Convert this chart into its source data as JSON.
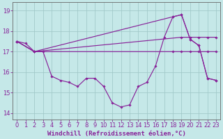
{
  "background_color": "#c5e8e8",
  "grid_color": "#a0c8c8",
  "line_color": "#882299",
  "xlabel": "Windchill (Refroidissement éolien,°C)",
  "ylim": [
    13.7,
    19.4
  ],
  "xlim": [
    -0.5,
    23.5
  ],
  "yticks": [
    14,
    15,
    16,
    17,
    18,
    19
  ],
  "xticks": [
    0,
    1,
    2,
    3,
    4,
    5,
    6,
    7,
    8,
    9,
    10,
    11,
    12,
    13,
    14,
    15,
    16,
    17,
    18,
    19,
    20,
    21,
    22,
    23
  ],
  "tick_fontsize": 6,
  "xlabel_fontsize": 6.5,
  "marker": "D",
  "markersize": 1.8,
  "linewidth": 0.85,
  "lines": [
    {
      "x": [
        0,
        1,
        2,
        3,
        4,
        5,
        6,
        7,
        8,
        9,
        10,
        11,
        12,
        13,
        14,
        15,
        16,
        17,
        18,
        19,
        20,
        21,
        22,
        23
      ],
      "y": [
        17.5,
        17.4,
        17.0,
        17.0,
        15.8,
        15.6,
        15.5,
        15.3,
        15.7,
        15.7,
        15.3,
        14.5,
        14.3,
        14.4,
        15.3,
        15.5,
        16.3,
        17.7,
        18.7,
        18.8,
        17.6,
        17.3,
        15.7,
        15.6
      ],
      "markers": true
    },
    {
      "x": [
        0,
        2,
        18,
        19,
        20,
        21,
        22,
        23
      ],
      "y": [
        17.5,
        17.0,
        18.7,
        18.8,
        17.6,
        17.3,
        15.7,
        15.6
      ],
      "markers": true
    },
    {
      "x": [
        0,
        2,
        19,
        20,
        21,
        22,
        23
      ],
      "y": [
        17.5,
        17.0,
        17.7,
        17.7,
        17.7,
        17.7,
        17.7
      ],
      "markers": true
    },
    {
      "x": [
        0,
        2,
        18,
        19,
        20,
        21,
        22,
        23
      ],
      "y": [
        17.5,
        17.0,
        17.0,
        17.0,
        17.0,
        17.0,
        17.0,
        17.0
      ],
      "markers": true
    }
  ]
}
